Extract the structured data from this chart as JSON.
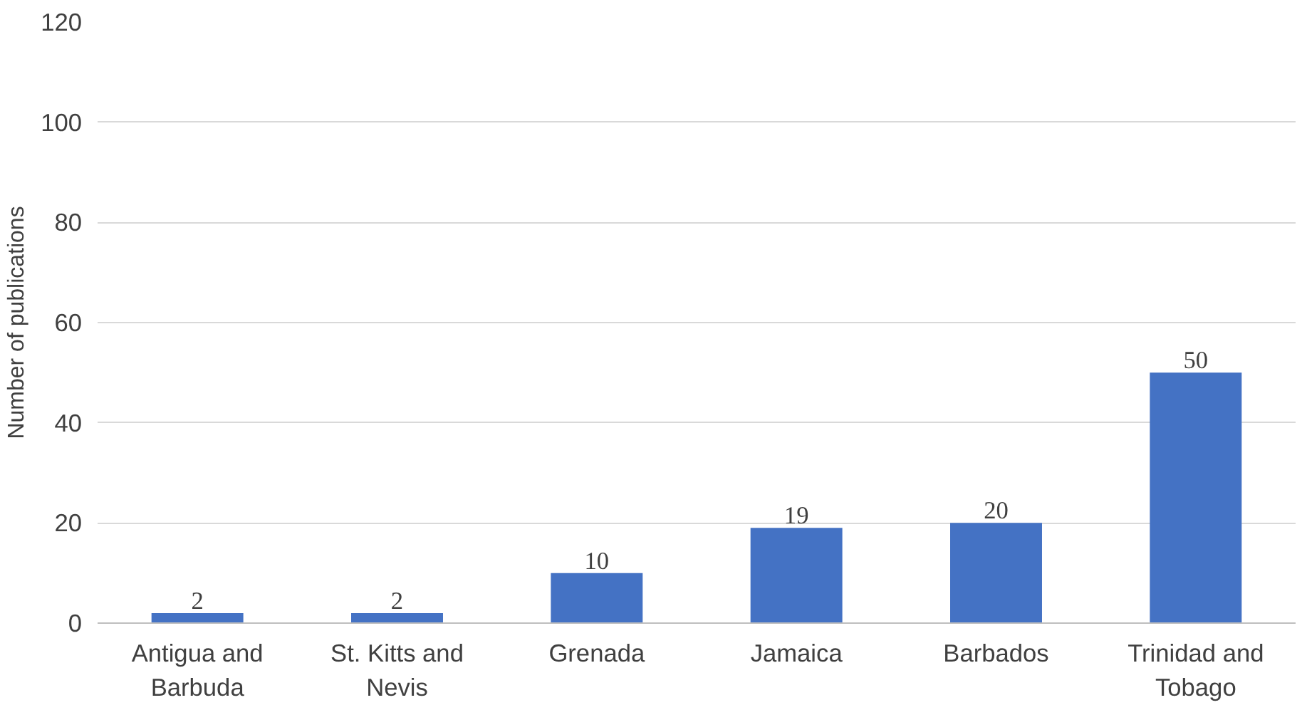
{
  "chart_data": {
    "type": "bar",
    "ylabel": "Number of publications",
    "categories": [
      "Antigua and Barbuda",
      "St. Kitts and Nevis",
      "Grenada",
      "Jamaica",
      "Barbados",
      "Trinidad and Tobago"
    ],
    "values": [
      2,
      2,
      10,
      19,
      20,
      50
    ],
    "color": "#4472c4",
    "ylim": [
      0,
      120
    ],
    "yticks": [
      0,
      20,
      40,
      60,
      80,
      100,
      120
    ],
    "grid": "y",
    "data_labels": true
  }
}
